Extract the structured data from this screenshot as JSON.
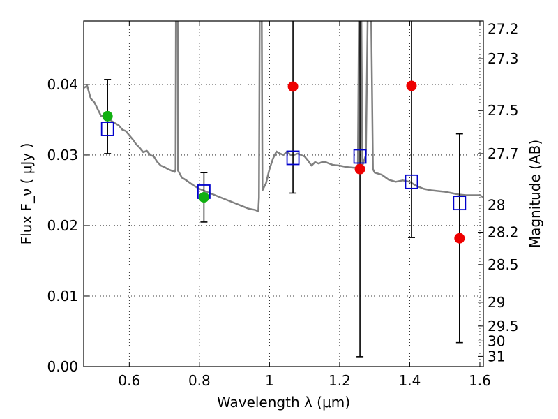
{
  "chart_data": {
    "type": "scatter",
    "xlabel": "Wavelength  λ (μm)",
    "ylabel": "Flux  F_ν  ( μJy )",
    "ylabel_right": "Magnitude (AB)",
    "xlim": [
      0.47,
      1.61
    ],
    "ylim": [
      0.0,
      0.049
    ],
    "x_ticks": [
      0.6,
      0.8,
      1.0,
      1.2,
      1.4,
      1.6
    ],
    "x_tick_labels": [
      "0.6",
      "0.8",
      "1",
      "1.2",
      "1.4",
      "1.6"
    ],
    "y_ticks": [
      0.0,
      0.01,
      0.02,
      0.03,
      0.04
    ],
    "y_tick_labels": [
      "0.00",
      "0.01",
      "0.02",
      "0.03",
      "0.04"
    ],
    "mag_ticks": [
      27.2,
      27.3,
      27.5,
      27.7,
      28,
      28.2,
      28.5,
      29,
      29.5,
      30,
      31
    ],
    "mag_tick_labels": [
      "27.2",
      "27.3",
      "27.5",
      "27.7",
      "28",
      "28.2",
      "28.5",
      "29",
      "29.5",
      "30",
      "31"
    ],
    "grid": true,
    "colors": {
      "model": "#808080",
      "observed_detection": "#11b011",
      "observed_upper": "#ee0000",
      "model_flux": "#0000cc",
      "errorbar": "#000000"
    },
    "model_spectrum": [
      [
        0.47,
        0.0395
      ],
      [
        0.48,
        0.0398
      ],
      [
        0.49,
        0.038
      ],
      [
        0.5,
        0.0375
      ],
      [
        0.51,
        0.0365
      ],
      [
        0.52,
        0.0355
      ],
      [
        0.53,
        0.0358
      ],
      [
        0.54,
        0.0352
      ],
      [
        0.55,
        0.0348
      ],
      [
        0.56,
        0.0345
      ],
      [
        0.57,
        0.0342
      ],
      [
        0.58,
        0.0336
      ],
      [
        0.59,
        0.0334
      ],
      [
        0.6,
        0.0328
      ],
      [
        0.61,
        0.0322
      ],
      [
        0.62,
        0.0315
      ],
      [
        0.63,
        0.031
      ],
      [
        0.64,
        0.0304
      ],
      [
        0.65,
        0.0306
      ],
      [
        0.66,
        0.03
      ],
      [
        0.67,
        0.0298
      ],
      [
        0.68,
        0.029
      ],
      [
        0.69,
        0.0285
      ],
      [
        0.7,
        0.0283
      ],
      [
        0.71,
        0.028
      ],
      [
        0.72,
        0.0278
      ],
      [
        0.73,
        0.0276
      ],
      [
        0.732,
        0.028
      ],
      [
        0.733,
        0.0495
      ],
      [
        0.738,
        0.0495
      ],
      [
        0.739,
        0.0278
      ],
      [
        0.75,
        0.0268
      ],
      [
        0.76,
        0.0265
      ],
      [
        0.78,
        0.0258
      ],
      [
        0.8,
        0.0252
      ],
      [
        0.82,
        0.0248
      ],
      [
        0.84,
        0.0244
      ],
      [
        0.86,
        0.024
      ],
      [
        0.88,
        0.0236
      ],
      [
        0.9,
        0.0232
      ],
      [
        0.92,
        0.0228
      ],
      [
        0.94,
        0.0224
      ],
      [
        0.96,
        0.0222
      ],
      [
        0.968,
        0.022
      ],
      [
        0.97,
        0.024
      ],
      [
        0.972,
        0.0495
      ],
      [
        0.978,
        0.0495
      ],
      [
        0.98,
        0.025
      ],
      [
        0.99,
        0.026
      ],
      [
        1.0,
        0.028
      ],
      [
        1.01,
        0.0295
      ],
      [
        1.02,
        0.0305
      ],
      [
        1.03,
        0.0302
      ],
      [
        1.04,
        0.03
      ],
      [
        1.05,
        0.0305
      ],
      [
        1.06,
        0.03
      ],
      [
        1.07,
        0.03
      ],
      [
        1.08,
        0.0302
      ],
      [
        1.09,
        0.03
      ],
      [
        1.1,
        0.0298
      ],
      [
        1.11,
        0.0292
      ],
      [
        1.12,
        0.0285
      ],
      [
        1.13,
        0.029
      ],
      [
        1.14,
        0.0288
      ],
      [
        1.15,
        0.029
      ],
      [
        1.16,
        0.029
      ],
      [
        1.17,
        0.0288
      ],
      [
        1.18,
        0.0286
      ],
      [
        1.2,
        0.0285
      ],
      [
        1.22,
        0.0283
      ],
      [
        1.24,
        0.0282
      ],
      [
        1.252,
        0.0282
      ],
      [
        1.255,
        0.0495
      ],
      [
        1.262,
        0.0495
      ],
      [
        1.265,
        0.0285
      ],
      [
        1.275,
        0.03
      ],
      [
        1.28,
        0.0495
      ],
      [
        1.29,
        0.0495
      ],
      [
        1.295,
        0.028
      ],
      [
        1.3,
        0.0275
      ],
      [
        1.32,
        0.0272
      ],
      [
        1.34,
        0.0265
      ],
      [
        1.36,
        0.0262
      ],
      [
        1.38,
        0.0264
      ],
      [
        1.4,
        0.0262
      ],
      [
        1.42,
        0.0256
      ],
      [
        1.44,
        0.0252
      ],
      [
        1.46,
        0.025
      ],
      [
        1.48,
        0.0249
      ],
      [
        1.5,
        0.0248
      ],
      [
        1.52,
        0.0246
      ],
      [
        1.54,
        0.0244
      ],
      [
        1.56,
        0.0243
      ],
      [
        1.58,
        0.0243
      ],
      [
        1.6,
        0.0243
      ],
      [
        1.61,
        0.024
      ]
    ],
    "observed": [
      {
        "x": 0.538,
        "y": 0.0355,
        "err_low": 0.0302,
        "err_high": 0.0407,
        "kind": "detection"
      },
      {
        "x": 0.813,
        "y": 0.024,
        "err_low": 0.0205,
        "err_high": 0.0275,
        "kind": "detection"
      },
      {
        "x": 1.067,
        "y": 0.0397,
        "err_low": 0.0246,
        "err_high": 0.0495,
        "kind": "upper"
      },
      {
        "x": 1.258,
        "y": 0.028,
        "err_low": 0.0014,
        "err_high": 0.0495,
        "kind": "upper"
      },
      {
        "x": 1.405,
        "y": 0.0398,
        "err_low": 0.0183,
        "err_high": 0.0495,
        "kind": "upper"
      },
      {
        "x": 1.542,
        "y": 0.0182,
        "err_low": 0.0034,
        "err_high": 0.033,
        "kind": "upper"
      }
    ],
    "model_flux": [
      {
        "x": 0.538,
        "y": 0.0337
      },
      {
        "x": 0.813,
        "y": 0.0248
      },
      {
        "x": 1.067,
        "y": 0.0296
      },
      {
        "x": 1.258,
        "y": 0.0298
      },
      {
        "x": 1.405,
        "y": 0.0262
      },
      {
        "x": 1.542,
        "y": 0.0232
      }
    ]
  }
}
